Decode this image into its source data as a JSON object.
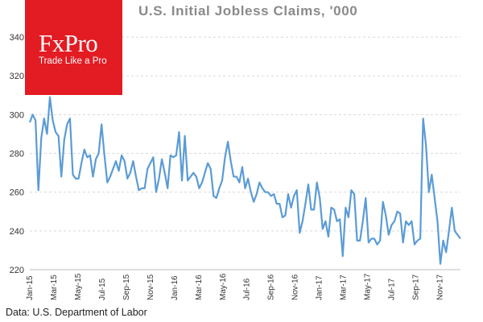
{
  "brand": {
    "name": "FxPro",
    "tagline": "Trade Like a Pro",
    "color": "#e31b23"
  },
  "source_note": "Data: U.S. Department of Labor",
  "chart_data": {
    "type": "line",
    "title": "U.S. Initial Jobless Claims, '000",
    "xlabel": "",
    "ylabel": "",
    "ylim": [
      220,
      350
    ],
    "yticks": [
      220,
      240,
      260,
      280,
      300,
      320,
      340
    ],
    "grid": "horizontal dashed",
    "line_color": "#5b9bd5",
    "x_tick_labels": [
      "Jan-15",
      "Mar-15",
      "May-15",
      "Jul-15",
      "Sep-15",
      "Nov-15",
      "Jan-16",
      "Mar-16",
      "May-16",
      "Jul-16",
      "Sep-16",
      "Nov-16",
      "Jan-17",
      "Mar-17",
      "May-17",
      "Jul-17",
      "Sep-17",
      "Nov-17"
    ],
    "series": [
      {
        "frequency": "weekly",
        "start": "Jan-15",
        "values": [
          296,
          300,
          297,
          261,
          288,
          298,
          290,
          309,
          297,
          291,
          289,
          268,
          287,
          295,
          298,
          269,
          267,
          267,
          275,
          282,
          278,
          279,
          268,
          277,
          280,
          295,
          279,
          265,
          268,
          272,
          276,
          271,
          279,
          276,
          267,
          270,
          276,
          268,
          261,
          262,
          262,
          272,
          275,
          278,
          260,
          267,
          277,
          270,
          262,
          279,
          278,
          279,
          291,
          266,
          289,
          266,
          268,
          270,
          268,
          262,
          265,
          270,
          275,
          272,
          258,
          257,
          262,
          266,
          278,
          286,
          276,
          268,
          268,
          265,
          273,
          262,
          267,
          260,
          255,
          259,
          265,
          262,
          260,
          260,
          258,
          259,
          254,
          254,
          247,
          248,
          259,
          252,
          258,
          261,
          239,
          245,
          254,
          264,
          251,
          251,
          265,
          257,
          241,
          245,
          237,
          252,
          251,
          245,
          246,
          227,
          252,
          247,
          261,
          259,
          235,
          235,
          245,
          257,
          234,
          236,
          236,
          233,
          235,
          255,
          248,
          238,
          243,
          245,
          250,
          249,
          234,
          245,
          243,
          245,
          233,
          235,
          236,
          298,
          284,
          260,
          269,
          257,
          245,
          223,
          235,
          229,
          240,
          252,
          240,
          238,
          236
        ]
      }
    ]
  }
}
